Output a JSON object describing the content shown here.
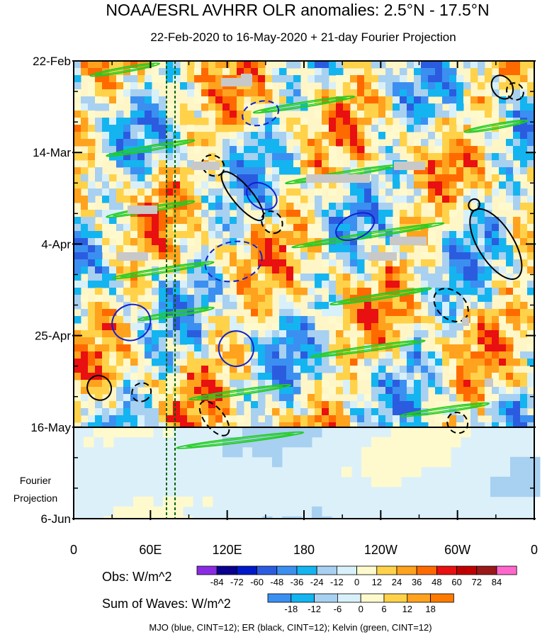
{
  "chart_data": {
    "type": "heatmap",
    "title": "NOAA/ESRL AVHRR OLR anomalies: 2.5°N - 17.5°N",
    "subtitle": "22-Feb-2020 to 16-May-2020 + 21-day Fourier Projection",
    "y_ticks": [
      "22-Feb",
      "14-Mar",
      "4-Apr",
      "25-Apr",
      "16-May",
      "6-Jun"
    ],
    "y_tick_days": [
      0,
      21,
      42,
      63,
      84,
      105
    ],
    "x_ticks": [
      "0",
      "60E",
      "120E",
      "180",
      "120W",
      "60W",
      "0"
    ],
    "x_tick_lon": [
      0,
      60,
      120,
      180,
      240,
      300,
      360
    ],
    "xlim": [
      0,
      360
    ],
    "ylim_days": [
      0,
      105
    ],
    "observation_end_day": 84,
    "projection_label": [
      "Fourier",
      "Projection"
    ],
    "obs_colorbar": {
      "label": "Obs: W/m^2",
      "levels": [
        "-84",
        "-72",
        "-60",
        "-48",
        "-36",
        "-24",
        "-12",
        "0",
        "12",
        "24",
        "36",
        "48",
        "60",
        "72",
        "84"
      ],
      "colors": [
        "#8a2be2",
        "#08008c",
        "#0018c8",
        "#2b5ce0",
        "#3b8ff0",
        "#14b4f0",
        "#a8d0f0",
        "#d8f0fa",
        "#fffacd",
        "#ffd24a",
        "#ffa21e",
        "#ff6a00",
        "#e81010",
        "#c00000",
        "#9a1818",
        "#ff66cc"
      ]
    },
    "waves_colorbar": {
      "label": "Sum of Waves: W/m^2",
      "levels": [
        "-18",
        "-12",
        "-6",
        "0",
        "6",
        "12",
        "18"
      ],
      "colors": [
        "#3b8ff0",
        "#14b4f0",
        "#a8d0f0",
        "#d8f0fa",
        "#fffacd",
        "#ffd24a",
        "#ffa21e",
        "#ff7a00"
      ]
    },
    "mjo": [
      {
        "lon": 146,
        "day": 12,
        "len": 18,
        "wid": 6,
        "ang": -15,
        "dash": true
      },
      {
        "lon": 125,
        "day": 46,
        "len": 28,
        "wid": 10,
        "ang": -12,
        "dash": true
      },
      {
        "lon": 147,
        "day": 31,
        "len": 16,
        "wid": 6,
        "ang": 35,
        "dash": false
      },
      {
        "lon": 220,
        "day": 38,
        "len": 20,
        "wid": 6,
        "ang": -25,
        "dash": false
      },
      {
        "lon": 45,
        "day": 60,
        "len": 19,
        "wid": 9,
        "ang": -25,
        "dash": false
      },
      {
        "lon": 127,
        "day": 66,
        "len": 17,
        "wid": 9,
        "ang": -15,
        "dash": false
      }
    ],
    "er": [
      {
        "lon": 132,
        "day": 31,
        "len": 30,
        "wid": 5,
        "ang": 50,
        "dash": false
      },
      {
        "lon": 109,
        "day": 24,
        "len": 13,
        "wid": 5,
        "ang": 35,
        "dash": true
      },
      {
        "lon": 330,
        "day": 42,
        "len": 39,
        "wid": 9,
        "ang": 58,
        "dash": false
      },
      {
        "lon": 295,
        "day": 56,
        "len": 19,
        "wid": 7,
        "ang": 42,
        "dash": true
      },
      {
        "lon": 345,
        "day": 7,
        "len": 10,
        "wid": 4,
        "ang": 45,
        "dash": true
      },
      {
        "lon": 335,
        "day": 6,
        "len": 14,
        "wid": 5,
        "ang": 55,
        "dash": false
      },
      {
        "lon": 20,
        "day": 75,
        "len": 14,
        "wid": 6,
        "ang": 55,
        "dash": false
      },
      {
        "lon": 53,
        "day": 76,
        "len": 10,
        "wid": 5,
        "ang": 55,
        "dash": true
      },
      {
        "lon": 110,
        "day": 82,
        "len": 20,
        "wid": 5,
        "ang": 52,
        "dash": true
      },
      {
        "lon": 155,
        "day": 37,
        "len": 13,
        "wid": 5,
        "ang": 55,
        "dash": true
      },
      {
        "lon": 313,
        "day": 33,
        "len": 6,
        "wid": 3,
        "ang": 35,
        "dash": false
      },
      {
        "lon": 300,
        "day": 83,
        "len": 12,
        "wid": 5,
        "ang": 50,
        "dash": true
      }
    ],
    "kelvin": [
      {
        "lon": 40,
        "day": 2,
        "len": 55,
        "ang": -10
      },
      {
        "lon": 180,
        "day": 10,
        "len": 80,
        "ang": -9
      },
      {
        "lon": 330,
        "day": 15,
        "len": 50,
        "ang": -10
      },
      {
        "lon": 60,
        "day": 20,
        "len": 70,
        "ang": -10
      },
      {
        "lon": 210,
        "day": 26,
        "len": 90,
        "ang": -9
      },
      {
        "lon": 60,
        "day": 34,
        "len": 70,
        "ang": -10
      },
      {
        "lon": 230,
        "day": 40,
        "len": 120,
        "ang": -9
      },
      {
        "lon": 70,
        "day": 48,
        "len": 80,
        "ang": -9
      },
      {
        "lon": 240,
        "day": 54,
        "len": 80,
        "ang": -9
      },
      {
        "lon": 80,
        "day": 58,
        "len": 60,
        "ang": -9
      },
      {
        "lon": 230,
        "day": 66,
        "len": 90,
        "ang": -8
      },
      {
        "lon": 130,
        "day": 76,
        "len": 80,
        "ang": -8
      },
      {
        "lon": 290,
        "day": 80,
        "len": 70,
        "ang": -8
      },
      {
        "lon": 130,
        "day": 87,
        "len": 100,
        "ang": -7
      }
    ],
    "footnote": "MJO (blue, CINT=12); ER (black, CINT=12); Kelvin (green, CINT=12)"
  }
}
